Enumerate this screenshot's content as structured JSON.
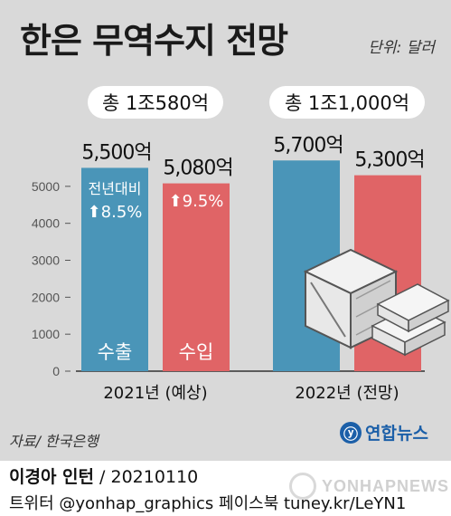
{
  "header": {
    "title": "한은 무역수지 전망",
    "unit": "단위: 달러"
  },
  "colors": {
    "panel_bg": "#d9d9d9",
    "export": "#4a95b8",
    "import": "#e06466",
    "accent_blue": "#1b5fa8"
  },
  "chart_data": {
    "type": "bar",
    "categories": [
      "2021년 (예상)",
      "2022년 (전망)"
    ],
    "series": [
      {
        "name": "수출",
        "values": [
          5500,
          5700
        ],
        "value_labels": [
          "5,500억",
          "5,700억"
        ]
      },
      {
        "name": "수입",
        "values": [
          5080,
          5300
        ],
        "value_labels": [
          "5,080억",
          "5,300억"
        ]
      }
    ],
    "totals": [
      "총 1조580억",
      "총 1조1,000억"
    ],
    "yoy": {
      "label": "전년대비",
      "export": "8.5%",
      "import": "9.5%"
    },
    "yticks": [
      0,
      1000,
      2000,
      3000,
      4000,
      5000
    ],
    "ylim": [
      0,
      6000
    ],
    "grid": false
  },
  "footer": {
    "source": "자료/ 한국은행",
    "agency": "연합뉴스",
    "credit_name": "이경아 인턴",
    "credit_date": " / 20210110",
    "social": "트위터 @yonhap_graphics  페이스북 tuney.kr/LeYN1",
    "watermark": "YONHAPNEWS"
  }
}
